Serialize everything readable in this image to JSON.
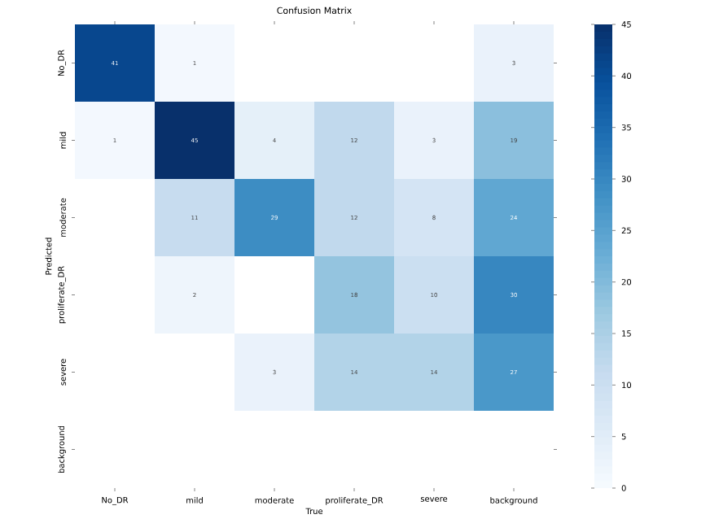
{
  "chart_data": {
    "type": "heatmap",
    "title": "Confusion Matrix",
    "xlabel": "True",
    "ylabel": "Predicted",
    "categories": [
      "No_DR",
      "mild",
      "moderate",
      "proliferate_DR",
      "severe",
      "background"
    ],
    "y_categories": [
      "No_DR",
      "mild",
      "moderate",
      "proliferate_DR",
      "severe",
      "background"
    ],
    "cells": [
      [
        41,
        1,
        null,
        null,
        null,
        3
      ],
      [
        1,
        45,
        4,
        12,
        3,
        19
      ],
      [
        null,
        11,
        29,
        12,
        8,
        24
      ],
      [
        null,
        2,
        null,
        18,
        10,
        30
      ],
      [
        null,
        null,
        3,
        14,
        14,
        27
      ],
      [
        null,
        null,
        null,
        null,
        null,
        null
      ]
    ],
    "data_labels": true,
    "clim": [
      0,
      45
    ],
    "cticks": [
      0,
      5,
      10,
      15,
      20,
      25,
      30,
      35,
      40,
      45
    ]
  }
}
